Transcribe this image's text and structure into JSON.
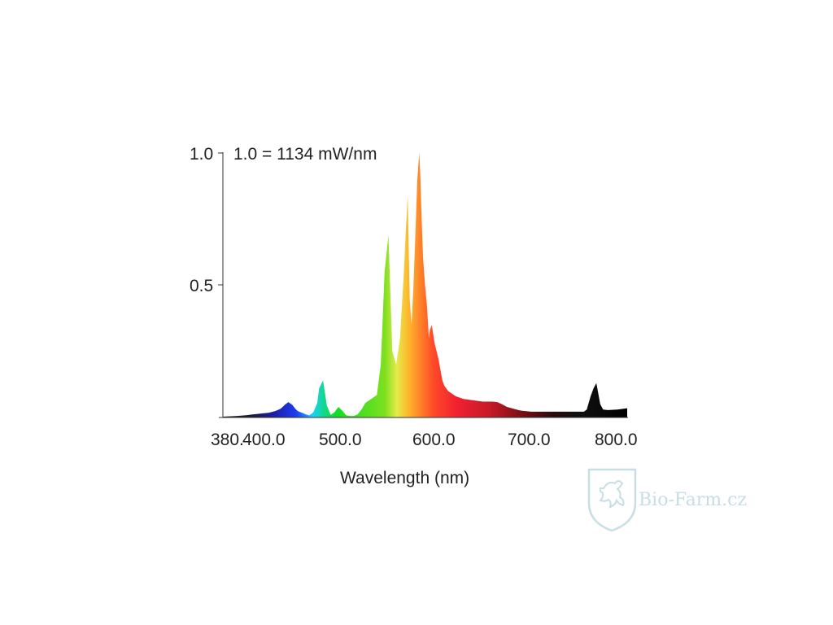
{
  "watermark": {
    "text": "Bio-Farm.cz",
    "color": "#c2dbe0",
    "icon": "lion-shield-icon"
  },
  "chart_data": {
    "type": "area",
    "title": "",
    "xlabel": "Wavelength (nm)",
    "ylabel": "",
    "annotation": "1.0 = 1134 mW/nm",
    "xlim": [
      380,
      800
    ],
    "ylim": [
      0,
      1.0
    ],
    "x_ticks": [
      380,
      400,
      500,
      600,
      700,
      800
    ],
    "x_tick_labels": [
      "380.",
      "400.0",
      "500.0",
      "600.0",
      "700.0",
      "800.0"
    ],
    "y_ticks": [
      0.5,
      1.0
    ],
    "y_tick_labels": [
      "0.5",
      "1.0"
    ],
    "fill": "visible-spectrum-gradient",
    "grid": false,
    "legend": "none",
    "series": [
      {
        "x": [
          380,
          395,
          405,
          410,
          420,
          428,
          434,
          437,
          440,
          445,
          448,
          452,
          456,
          458,
          462,
          466,
          470,
          474,
          478,
          480,
          484,
          488,
          492,
          496,
          500,
          505,
          508,
          512,
          516,
          520,
          524,
          528,
          532,
          536,
          540,
          544,
          548,
          552,
          556,
          560,
          564,
          568,
          570,
          572,
          574,
          576,
          578,
          580,
          582,
          584,
          585,
          586,
          588,
          590,
          592,
          594,
          595,
          597,
          600,
          604,
          606,
          608,
          610,
          612,
          614,
          618,
          622,
          630,
          640,
          650,
          660,
          665,
          670,
          675,
          680,
          685,
          690,
          700,
          710,
          720,
          740,
          755,
          758,
          762,
          765,
          768,
          770,
          772,
          775,
          780,
          790,
          800
        ],
        "y": [
          0.003,
          0.006,
          0.009,
          0.011,
          0.015,
          0.018,
          0.024,
          0.028,
          0.033,
          0.05,
          0.058,
          0.048,
          0.03,
          0.024,
          0.018,
          0.012,
          0.008,
          0.02,
          0.055,
          0.11,
          0.14,
          0.045,
          0.01,
          0.02,
          0.04,
          0.022,
          0.008,
          0.006,
          0.006,
          0.012,
          0.03,
          0.055,
          0.065,
          0.075,
          0.085,
          0.2,
          0.55,
          0.69,
          0.25,
          0.2,
          0.3,
          0.55,
          0.7,
          0.84,
          0.45,
          0.35,
          0.5,
          0.7,
          0.9,
          1.0,
          0.92,
          0.8,
          0.6,
          0.5,
          0.42,
          0.3,
          0.33,
          0.35,
          0.28,
          0.22,
          0.18,
          0.14,
          0.12,
          0.11,
          0.1,
          0.09,
          0.08,
          0.07,
          0.065,
          0.06,
          0.06,
          0.058,
          0.05,
          0.04,
          0.035,
          0.03,
          0.026,
          0.022,
          0.022,
          0.022,
          0.022,
          0.022,
          0.03,
          0.08,
          0.11,
          0.13,
          0.09,
          0.05,
          0.03,
          0.028,
          0.03,
          0.035
        ]
      }
    ]
  }
}
